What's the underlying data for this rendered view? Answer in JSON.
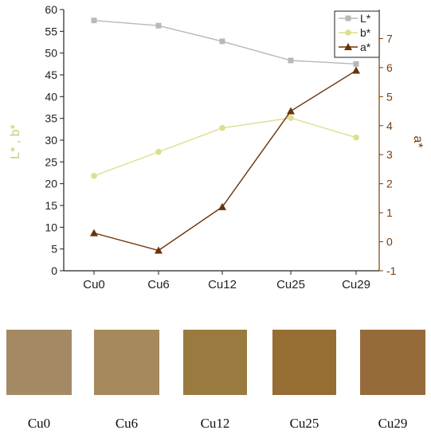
{
  "chart_data": {
    "type": "line",
    "categories": [
      "Cu0",
      "Cu6",
      "Cu12",
      "Cu25",
      "Cu29"
    ],
    "left_axis": {
      "label": "L* , b*",
      "ylim": [
        0,
        60
      ],
      "ticks": [
        0,
        5,
        10,
        15,
        20,
        25,
        30,
        35,
        40,
        45,
        50,
        55,
        60
      ]
    },
    "right_axis": {
      "label": "a*",
      "ylim": [
        -1,
        8.0
      ],
      "ticks": [
        -1,
        0,
        1,
        2,
        3,
        4,
        5,
        6,
        7
      ],
      "color": "#7a3d0a"
    },
    "series": [
      {
        "name": "L*",
        "axis": "left",
        "color": "#b8b8b8",
        "marker": "square",
        "values": [
          57.5,
          56.3,
          52.7,
          48.3,
          47.5
        ]
      },
      {
        "name": "b*",
        "axis": "left",
        "color": "#dede8c",
        "marker": "circle",
        "values": [
          21.8,
          27.3,
          32.8,
          35.1,
          30.6
        ]
      },
      {
        "name": "a*",
        "axis": "right",
        "color": "#6b3209",
        "marker": "triangle",
        "values": [
          0.3,
          -0.3,
          1.2,
          4.5,
          5.9
        ]
      }
    ],
    "legend_position": "top-right",
    "grid": false
  },
  "swatches": [
    {
      "label": "Cu0",
      "color": "#a48a64"
    },
    {
      "label": "Cu6",
      "color": "#a6895c"
    },
    {
      "label": "Cu12",
      "color": "#9a7b3f"
    },
    {
      "label": "Cu25",
      "color": "#966d33"
    },
    {
      "label": "Cu29",
      "color": "#966b3b"
    }
  ]
}
